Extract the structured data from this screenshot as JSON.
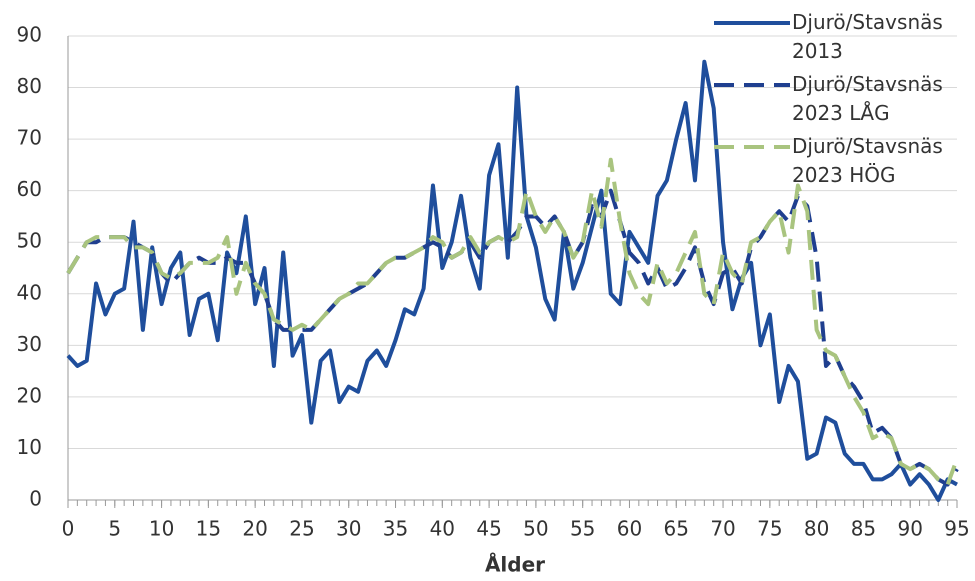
{
  "chart_data": {
    "type": "line",
    "xlabel": "Ålder",
    "x": [
      0,
      1,
      2,
      3,
      4,
      5,
      6,
      7,
      8,
      9,
      10,
      11,
      12,
      13,
      14,
      15,
      16,
      17,
      18,
      19,
      20,
      21,
      22,
      23,
      24,
      25,
      26,
      27,
      28,
      29,
      30,
      31,
      32,
      33,
      34,
      35,
      36,
      37,
      38,
      39,
      40,
      41,
      42,
      43,
      44,
      45,
      46,
      47,
      48,
      49,
      50,
      51,
      52,
      53,
      54,
      55,
      56,
      57,
      58,
      59,
      60,
      61,
      62,
      63,
      64,
      65,
      66,
      67,
      68,
      69,
      70,
      71,
      72,
      73,
      74,
      75,
      76,
      77,
      78,
      79,
      80,
      81,
      82,
      83,
      84,
      85,
      86,
      87,
      88,
      89,
      90,
      91,
      92,
      93,
      94,
      95
    ],
    "xlim": [
      0,
      95
    ],
    "xticks": [
      0,
      5,
      10,
      15,
      20,
      25,
      30,
      35,
      40,
      45,
      50,
      55,
      60,
      65,
      70,
      75,
      80,
      85,
      90,
      95
    ],
    "ylim": [
      0,
      90
    ],
    "yticks": [
      0,
      10,
      20,
      30,
      40,
      50,
      60,
      70,
      80,
      90
    ],
    "grid": true,
    "legend": "top-right",
    "series": [
      {
        "name": "Djurö/Stavsnäs 2013",
        "color": "#1f4e9c",
        "dashed": false,
        "values": [
          28,
          26,
          27,
          42,
          36,
          40,
          41,
          54,
          33,
          49,
          38,
          45,
          48,
          32,
          39,
          40,
          31,
          48,
          44,
          55,
          38,
          45,
          26,
          48,
          28,
          32,
          15,
          27,
          29,
          19,
          22,
          21,
          27,
          29,
          26,
          31,
          37,
          36,
          41,
          61,
          45,
          50,
          59,
          47,
          41,
          63,
          69,
          47,
          80,
          55,
          49,
          39,
          35,
          52,
          41,
          46,
          53,
          60,
          40,
          38,
          52,
          49,
          46,
          59,
          62,
          70,
          77,
          62,
          85,
          76,
          50,
          37,
          43,
          46,
          30,
          36,
          19,
          26,
          23,
          8,
          9,
          16,
          15,
          9,
          7,
          7,
          4,
          4,
          5,
          7,
          3,
          5,
          3,
          0,
          4,
          3
        ]
      },
      {
        "name": "Djurö/Stavsnäs 2023 LÅG",
        "color": "#1f3f8f",
        "dashed": true,
        "values": [
          44,
          47,
          50,
          50,
          51,
          51,
          51,
          50,
          49,
          48,
          44,
          42,
          44,
          46,
          47,
          46,
          46,
          47,
          46,
          46,
          42,
          40,
          35,
          33,
          33,
          33,
          33,
          35,
          37,
          39,
          40,
          41,
          42,
          44,
          46,
          47,
          47,
          48,
          49,
          50,
          49,
          47,
          48,
          50,
          47,
          50,
          51,
          50,
          52,
          55,
          55,
          53,
          55,
          52,
          47,
          50,
          57,
          55,
          60,
          54,
          48,
          46,
          42,
          45,
          41,
          42,
          45,
          49,
          42,
          38,
          44,
          45,
          42,
          49,
          51,
          54,
          56,
          54,
          59,
          57,
          47,
          26,
          28,
          24,
          22,
          19,
          13,
          14,
          12,
          7,
          6,
          7,
          6,
          4,
          3,
          6
        ]
      },
      {
        "name": "Djurö/Stavsnäs 2023 HÖG",
        "color": "#a9c47f",
        "dashed": true,
        "values": [
          44,
          47,
          50,
          51,
          51,
          51,
          51,
          49,
          49,
          48,
          44,
          43,
          44,
          46,
          46,
          46,
          47,
          51,
          40,
          46,
          42,
          40,
          35,
          34,
          33,
          34,
          33,
          35,
          37,
          39,
          40,
          42,
          42,
          44,
          46,
          47,
          47,
          48,
          49,
          51,
          50,
          47,
          48,
          51,
          48,
          50,
          51,
          50,
          51,
          60,
          55,
          52,
          55,
          52,
          47,
          50,
          60,
          53,
          66,
          54,
          44,
          40,
          38,
          46,
          42,
          44,
          48,
          52,
          40,
          38,
          48,
          44,
          42,
          50,
          51,
          54,
          56,
          48,
          61,
          56,
          33,
          29,
          28,
          24,
          20,
          17,
          12,
          13,
          12,
          7,
          6,
          7,
          6,
          4,
          3,
          8
        ]
      }
    ]
  }
}
